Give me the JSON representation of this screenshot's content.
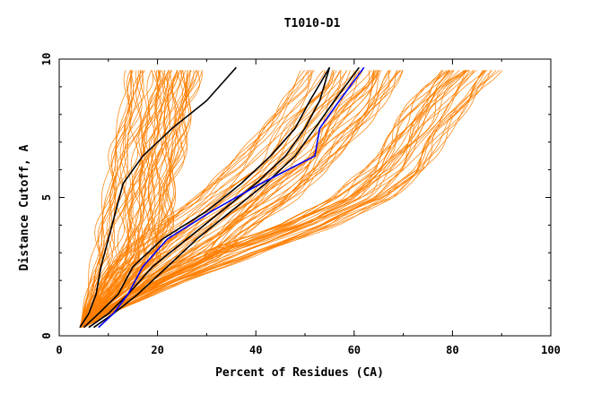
{
  "chart_data": {
    "type": "line",
    "title": "T1010-D1",
    "xlabel": "Percent of Residues (CA)",
    "ylabel": "Distance Cutoff, A",
    "xlim": [
      0,
      100
    ],
    "ylim": [
      0,
      10
    ],
    "x_ticks": [
      0,
      20,
      40,
      60,
      80,
      100
    ],
    "y_ticks": [
      0,
      5,
      10
    ],
    "y_max_cutoff": 9.7,
    "colors": {
      "background_models": "#ff7f00",
      "highlight_black": "#000000",
      "highlight_blue": "#0000ff"
    },
    "background_groups": [
      {
        "name": "steep-dense",
        "count": 60,
        "x_at": [
          [
            0.3,
            4.2
          ],
          [
            1,
            5
          ],
          [
            2,
            6
          ],
          [
            3,
            7
          ],
          [
            4,
            8
          ],
          [
            5,
            9
          ],
          [
            6,
            10
          ],
          [
            7,
            11
          ],
          [
            8,
            12.5
          ],
          [
            9,
            13.5
          ],
          [
            9.7,
            14
          ]
        ],
        "spread_low": 0,
        "spread_high": 14
      },
      {
        "name": "medium",
        "count": 50,
        "x_at": [
          [
            0.3,
            4.5
          ],
          [
            1,
            8
          ],
          [
            2,
            14
          ],
          [
            3,
            21
          ],
          [
            4,
            28
          ],
          [
            5,
            36
          ],
          [
            6,
            42
          ],
          [
            7,
            47
          ],
          [
            8,
            52
          ],
          [
            9,
            56
          ],
          [
            9.7,
            58
          ]
        ],
        "spread_low": -8,
        "spread_high": 12
      },
      {
        "name": "shallow",
        "count": 35,
        "x_at": [
          [
            0.3,
            5
          ],
          [
            1,
            11
          ],
          [
            2,
            22
          ],
          [
            3,
            35
          ],
          [
            4,
            50
          ],
          [
            5,
            62
          ],
          [
            6,
            68
          ],
          [
            7,
            72
          ],
          [
            8,
            76
          ],
          [
            9,
            80
          ],
          [
            9.7,
            84
          ]
        ],
        "spread_low": -6,
        "spread_high": 6
      }
    ],
    "series": [
      {
        "name": "black-1",
        "color": "#000000",
        "points": [
          [
            4.2,
            0.3
          ],
          [
            6,
            0.8
          ],
          [
            7.5,
            1.5
          ],
          [
            8.5,
            2.5
          ],
          [
            10,
            3.5
          ],
          [
            11.5,
            4.5
          ],
          [
            13,
            5.5
          ],
          [
            17,
            6.5
          ],
          [
            23,
            7.5
          ],
          [
            30,
            8.5
          ],
          [
            36,
            9.7
          ]
        ]
      },
      {
        "name": "black-2",
        "color": "#000000",
        "points": [
          [
            5,
            0.3
          ],
          [
            8,
            0.8
          ],
          [
            12,
            1.5
          ],
          [
            15,
            2.5
          ],
          [
            21,
            3.5
          ],
          [
            30,
            4.5
          ],
          [
            37,
            5.5
          ],
          [
            43,
            6.5
          ],
          [
            48,
            7.5
          ],
          [
            51,
            8.5
          ],
          [
            55,
            9.7
          ]
        ]
      },
      {
        "name": "black-3",
        "color": "#000000",
        "points": [
          [
            6,
            0.3
          ],
          [
            10,
            0.8
          ],
          [
            14,
            1.5
          ],
          [
            19,
            2.5
          ],
          [
            26,
            3.5
          ],
          [
            33,
            4.5
          ],
          [
            40,
            5.5
          ],
          [
            46,
            6.5
          ],
          [
            50,
            7.5
          ],
          [
            53,
            8.5
          ],
          [
            55,
            9.7
          ]
        ]
      },
      {
        "name": "black-4",
        "color": "#000000",
        "points": [
          [
            7,
            0.3
          ],
          [
            11,
            0.8
          ],
          [
            16,
            1.5
          ],
          [
            22,
            2.5
          ],
          [
            28,
            3.5
          ],
          [
            35,
            4.5
          ],
          [
            42,
            5.5
          ],
          [
            48,
            6.5
          ],
          [
            52,
            7.5
          ],
          [
            56,
            8.5
          ],
          [
            61,
            9.7
          ]
        ]
      },
      {
        "name": "blue-model",
        "color": "#0000ff",
        "points": [
          [
            8,
            0.3
          ],
          [
            11,
            0.8
          ],
          [
            14,
            1.5
          ],
          [
            17,
            2.5
          ],
          [
            22,
            3.5
          ],
          [
            31,
            4.5
          ],
          [
            41,
            5.5
          ],
          [
            52,
            6.5
          ],
          [
            53,
            7.5
          ],
          [
            57,
            8.5
          ],
          [
            62,
            9.7
          ]
        ]
      }
    ]
  }
}
